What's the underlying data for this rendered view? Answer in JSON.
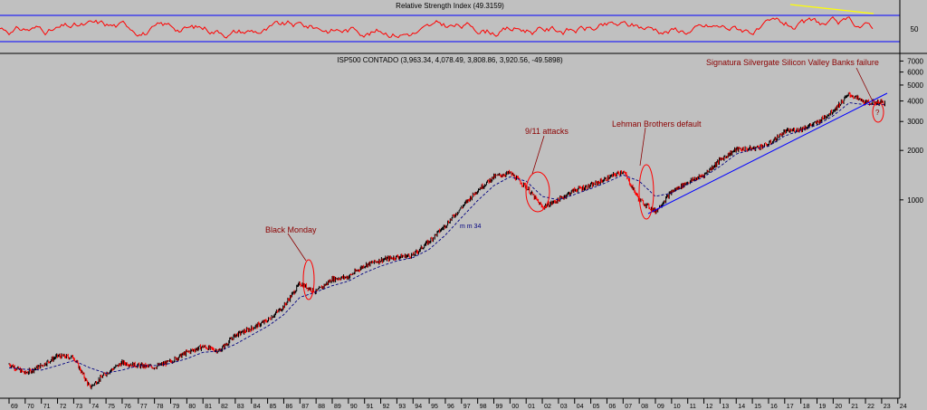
{
  "chart_data": [
    {
      "type": "line",
      "title": "Relative Strength Index (49.3159)",
      "series": [],
      "y_ticks": [
        "50"
      ],
      "reference_lines": [
        70,
        30
      ],
      "trendline_color": "#ffff00",
      "line_color": "#ff0000",
      "ref_color": "#0000ff"
    },
    {
      "type": "line",
      "title": "ISP500 CONTADO (3,963.34, 4,078.49, 3,808.86, 3,920.56, -49.5898)",
      "scale": "log",
      "ylim": [
        62,
        7500
      ],
      "y_ticks": [
        7000,
        6000,
        5000,
        4000,
        3000,
        2000,
        1000
      ],
      "x_ticks": [
        "69",
        "70",
        "71",
        "72",
        "73",
        "74",
        "75",
        "76",
        "77",
        "78",
        "79",
        "80",
        "81",
        "82",
        "83",
        "84",
        "85",
        "86",
        "87",
        "88",
        "89",
        "90",
        "91",
        "92",
        "93",
        "94",
        "95",
        "96",
        "97",
        "98",
        "99",
        "00",
        "01",
        "02",
        "03",
        "04",
        "05",
        "06",
        "07",
        "08",
        "09",
        "10",
        "11",
        "12",
        "13",
        "14",
        "15",
        "16",
        "17",
        "18",
        "19",
        "20",
        "21",
        "22",
        "23",
        "24"
      ],
      "series_values_by_year": {
        "x": [
          1969,
          1970,
          1971,
          1972,
          1973,
          1974,
          1975,
          1976,
          1977,
          1978,
          1979,
          1980,
          1981,
          1982,
          1983,
          1984,
          1985,
          1986,
          1987,
          1988,
          1989,
          1990,
          1991,
          1992,
          1993,
          1994,
          1995,
          1996,
          1997,
          1998,
          1999,
          2000,
          2001,
          2002,
          2003,
          2004,
          2005,
          2006,
          2007,
          2008,
          2009,
          2010,
          2011,
          2012,
          2013,
          2014,
          2015,
          2016,
          2017,
          2018,
          2019,
          2020,
          2021,
          2022,
          2023
        ],
        "price": [
          100,
          88,
          98,
          112,
          110,
          72,
          88,
          102,
          98,
          96,
          104,
          118,
          128,
          120,
          150,
          165,
          185,
          225,
          310,
          275,
          330,
          340,
          400,
          430,
          450,
          460,
          560,
          700,
          900,
          1150,
          1380,
          1460,
          1200,
          900,
          1000,
          1150,
          1220,
          1350,
          1500,
          1000,
          850,
          1120,
          1280,
          1420,
          1750,
          2030,
          2050,
          2180,
          2600,
          2700,
          2950,
          3500,
          4400,
          3900,
          3920
        ],
        "ma34": [
          95,
          93,
          92,
          98,
          105,
          95,
          88,
          92,
          98,
          98,
          101,
          108,
          118,
          120,
          132,
          150,
          170,
          200,
          255,
          275,
          300,
          320,
          360,
          395,
          425,
          445,
          500,
          610,
          780,
          990,
          1220,
          1380,
          1300,
          1050,
          1000,
          1080,
          1170,
          1280,
          1420,
          1300,
          1050,
          1100,
          1250,
          1380,
          1600,
          1900,
          2030,
          2120,
          2450,
          2650,
          2850,
          3250,
          3900,
          3800,
          3800
        ]
      },
      "ma_label": "m m 34",
      "annotations": [
        "Black Monday",
        "9/11 attacks",
        "Lehman Brothers default",
        "Signatura Silvergate Silicon Valley Banks failure",
        "?"
      ],
      "colors": {
        "up": "#000000",
        "down": "#ff0000",
        "ma": "#000080",
        "trend": "#0000ff",
        "note": "#8b0000"
      }
    }
  ]
}
